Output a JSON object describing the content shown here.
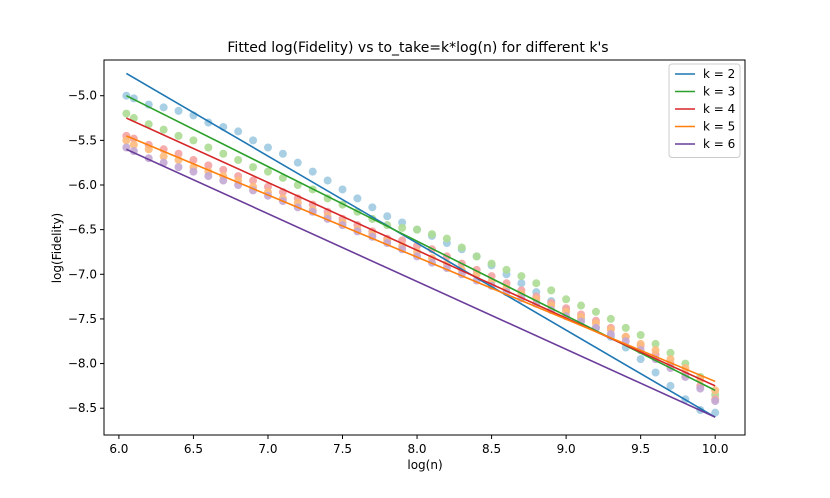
{
  "chart_data": {
    "type": "scatter",
    "title": "Fitted log(Fidelity) vs to_take=k*log(n) for different k's",
    "xlabel": "log(n)",
    "ylabel": "log(Fidelity)",
    "xlim": [
      5.9,
      10.2
    ],
    "ylim": [
      -8.8,
      -4.6
    ],
    "xticks": [
      6.0,
      6.5,
      7.0,
      7.5,
      8.0,
      8.5,
      9.0,
      9.5,
      10.0
    ],
    "xtick_labels": [
      "6.0",
      "6.5",
      "7.0",
      "7.5",
      "8.0",
      "8.5",
      "9.0",
      "9.5",
      "10.0"
    ],
    "yticks": [
      -5.0,
      -5.5,
      -6.0,
      -6.5,
      -7.0,
      -7.5,
      -8.0,
      -8.5
    ],
    "ytick_labels": [
      "−5.0",
      "−5.5",
      "−6.0",
      "−6.5",
      "−7.0",
      "−7.5",
      "−8.0",
      "−8.5"
    ],
    "x": [
      6.05,
      6.1,
      6.2,
      6.3,
      6.4,
      6.5,
      6.6,
      6.7,
      6.8,
      6.9,
      7.0,
      7.1,
      7.2,
      7.3,
      7.4,
      7.5,
      7.6,
      7.7,
      7.8,
      7.9,
      8.0,
      8.1,
      8.2,
      8.3,
      8.4,
      8.5,
      8.6,
      8.7,
      8.8,
      8.9,
      9.0,
      9.1,
      9.2,
      9.3,
      9.4,
      9.5,
      9.6,
      9.7,
      9.8,
      9.9,
      10.0
    ],
    "legend_position": "top-right",
    "series": [
      {
        "name": "k = 2",
        "color": "#1f77b4",
        "scatter_color": "#9ecae1",
        "fit": [
          [
            6.05,
            -4.75
          ],
          [
            10.0,
            -8.6
          ]
        ],
        "y": [
          -5.0,
          -5.03,
          -5.1,
          -5.13,
          -5.17,
          -5.22,
          -5.3,
          -5.35,
          -5.4,
          -5.5,
          -5.58,
          -5.65,
          -5.75,
          -5.85,
          -5.95,
          -6.05,
          -6.15,
          -6.25,
          -6.35,
          -6.42,
          -6.5,
          -6.57,
          -6.65,
          -6.72,
          -6.8,
          -6.9,
          -7.0,
          -7.1,
          -7.2,
          -7.3,
          -7.4,
          -7.5,
          -7.6,
          -7.7,
          -7.82,
          -7.95,
          -8.1,
          -8.25,
          -8.4,
          -8.52,
          -8.55
        ]
      },
      {
        "name": "k = 3",
        "color": "#2ca02c",
        "scatter_color": "#addc93",
        "fit": [
          [
            6.05,
            -5.0
          ],
          [
            10.0,
            -8.3
          ]
        ],
        "y": [
          -5.2,
          -5.25,
          -5.32,
          -5.38,
          -5.45,
          -5.5,
          -5.58,
          -5.65,
          -5.72,
          -5.8,
          -5.85,
          -5.92,
          -6.0,
          -6.05,
          -6.15,
          -6.22,
          -6.3,
          -6.38,
          -6.45,
          -6.48,
          -6.5,
          -6.55,
          -6.6,
          -6.7,
          -6.8,
          -6.88,
          -6.95,
          -7.02,
          -7.1,
          -7.18,
          -7.28,
          -7.35,
          -7.42,
          -7.5,
          -7.6,
          -7.68,
          -7.78,
          -7.88,
          -8.0,
          -8.15,
          -8.35
        ]
      },
      {
        "name": "k = 4",
        "color": "#d62728",
        "scatter_color": "#f4a3a3",
        "fit": [
          [
            6.05,
            -5.25
          ],
          [
            10.0,
            -8.25
          ]
        ],
        "y": [
          -5.45,
          -5.48,
          -5.55,
          -5.6,
          -5.65,
          -5.72,
          -5.78,
          -5.83,
          -5.9,
          -5.95,
          -6.02,
          -6.08,
          -6.15,
          -6.22,
          -6.3,
          -6.38,
          -6.45,
          -6.52,
          -6.6,
          -6.62,
          -6.68,
          -6.72,
          -6.8,
          -6.88,
          -6.95,
          -7.02,
          -7.1,
          -7.18,
          -7.25,
          -7.32,
          -7.38,
          -7.45,
          -7.52,
          -7.6,
          -7.7,
          -7.8,
          -7.9,
          -8.0,
          -8.12,
          -8.25,
          -8.4
        ]
      },
      {
        "name": "k = 5",
        "color": "#ff7f0e",
        "scatter_color": "#fdbb7d",
        "fit": [
          [
            6.05,
            -5.45
          ],
          [
            10.0,
            -8.2
          ]
        ],
        "y": [
          -5.5,
          -5.55,
          -5.6,
          -5.68,
          -5.72,
          -5.8,
          -5.85,
          -5.9,
          -5.95,
          -6.02,
          -6.08,
          -6.15,
          -6.2,
          -6.28,
          -6.35,
          -6.42,
          -6.5,
          -6.55,
          -6.62,
          -6.68,
          -6.75,
          -6.82,
          -6.88,
          -6.95,
          -7.0,
          -7.08,
          -7.15,
          -7.22,
          -7.28,
          -7.35,
          -7.42,
          -7.48,
          -7.55,
          -7.62,
          -7.7,
          -7.78,
          -7.85,
          -7.95,
          -8.05,
          -8.18,
          -8.3
        ]
      },
      {
        "name": "k = 6",
        "color": "#6a3d9a",
        "scatter_color": "#c3a9d4",
        "fit": [
          [
            6.05,
            -5.6
          ],
          [
            10.0,
            -8.6
          ]
        ],
        "y": [
          -5.58,
          -5.62,
          -5.7,
          -5.75,
          -5.8,
          -5.85,
          -5.9,
          -5.95,
          -6.0,
          -6.06,
          -6.12,
          -6.18,
          -6.25,
          -6.3,
          -6.38,
          -6.45,
          -6.52,
          -6.58,
          -6.65,
          -6.72,
          -6.8,
          -6.87,
          -6.93,
          -7.0,
          -7.07,
          -7.13,
          -7.2,
          -7.27,
          -7.33,
          -7.4,
          -7.47,
          -7.53,
          -7.6,
          -7.67,
          -7.75,
          -7.85,
          -7.95,
          -8.05,
          -8.15,
          -8.28,
          -8.42
        ]
      }
    ]
  }
}
